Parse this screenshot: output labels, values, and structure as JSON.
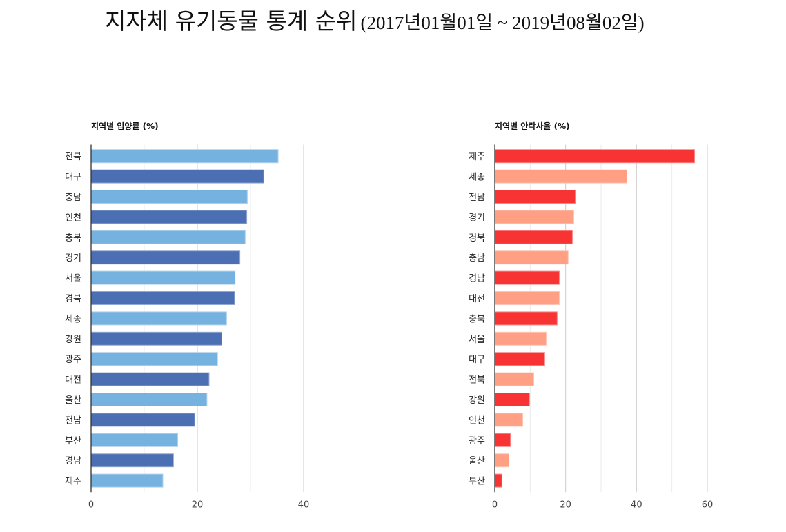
{
  "page": {
    "title_main": "지자체 유기동물 통계 순위",
    "title_range": "(2017년01월01일 ~ 2019년08월02일)"
  },
  "chart_data": [
    {
      "type": "bar",
      "orientation": "horizontal",
      "title": "지역별 입양률 (%)",
      "xlabel": "",
      "ylabel": "",
      "xlim": [
        0,
        40
      ],
      "x_ticks": [
        0,
        20,
        40
      ],
      "minor_grid_step": 10,
      "grid": true,
      "legend": "none",
      "categories": [
        "전북",
        "대구",
        "충남",
        "인천",
        "충북",
        "경기",
        "서울",
        "경북",
        "세종",
        "강원",
        "광주",
        "대전",
        "울산",
        "전남",
        "부산",
        "경남",
        "제주"
      ],
      "values": [
        35.2,
        32.5,
        29.4,
        29.3,
        29.0,
        28.0,
        27.1,
        27.0,
        25.5,
        24.6,
        23.8,
        22.2,
        21.8,
        19.5,
        16.3,
        15.5,
        13.5
      ],
      "colors": [
        "#76B2E0",
        "#4C6FB4"
      ]
    },
    {
      "type": "bar",
      "orientation": "horizontal",
      "title": "지역별 안락사율 (%)",
      "xlabel": "",
      "ylabel": "",
      "xlim": [
        0,
        60
      ],
      "x_ticks": [
        0,
        20,
        40,
        60
      ],
      "minor_grid_step": 10,
      "grid": true,
      "legend": "none",
      "categories": [
        "제주",
        "세종",
        "전남",
        "경기",
        "경북",
        "충남",
        "경남",
        "대전",
        "충북",
        "서울",
        "대구",
        "전북",
        "강원",
        "인천",
        "광주",
        "울산",
        "부산"
      ],
      "values": [
        56.4,
        37.3,
        22.7,
        22.3,
        21.9,
        20.7,
        18.2,
        18.2,
        17.6,
        14.5,
        14.1,
        11.0,
        9.8,
        7.9,
        4.4,
        4.0,
        2.0
      ],
      "colors": [
        "#F83333",
        "#FF9F84"
      ]
    }
  ]
}
